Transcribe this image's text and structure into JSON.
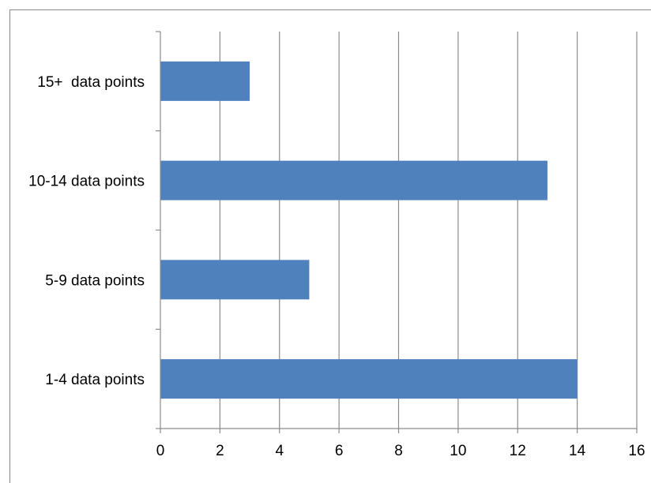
{
  "chart_data": {
    "type": "bar",
    "orientation": "horizontal",
    "categories": [
      "15+  data points",
      "10-14 data points",
      "5-9 data points",
      "1-4 data points"
    ],
    "values": [
      3,
      13,
      5,
      14
    ],
    "xlim": [
      0,
      16
    ],
    "x_ticks": [
      "0",
      "2",
      "4",
      "6",
      "8",
      "10",
      "12",
      "14",
      "16"
    ],
    "grid": "vertical",
    "legend": "none",
    "bar_color": "#4f81bd",
    "grid_color": "#8c8c8c"
  }
}
